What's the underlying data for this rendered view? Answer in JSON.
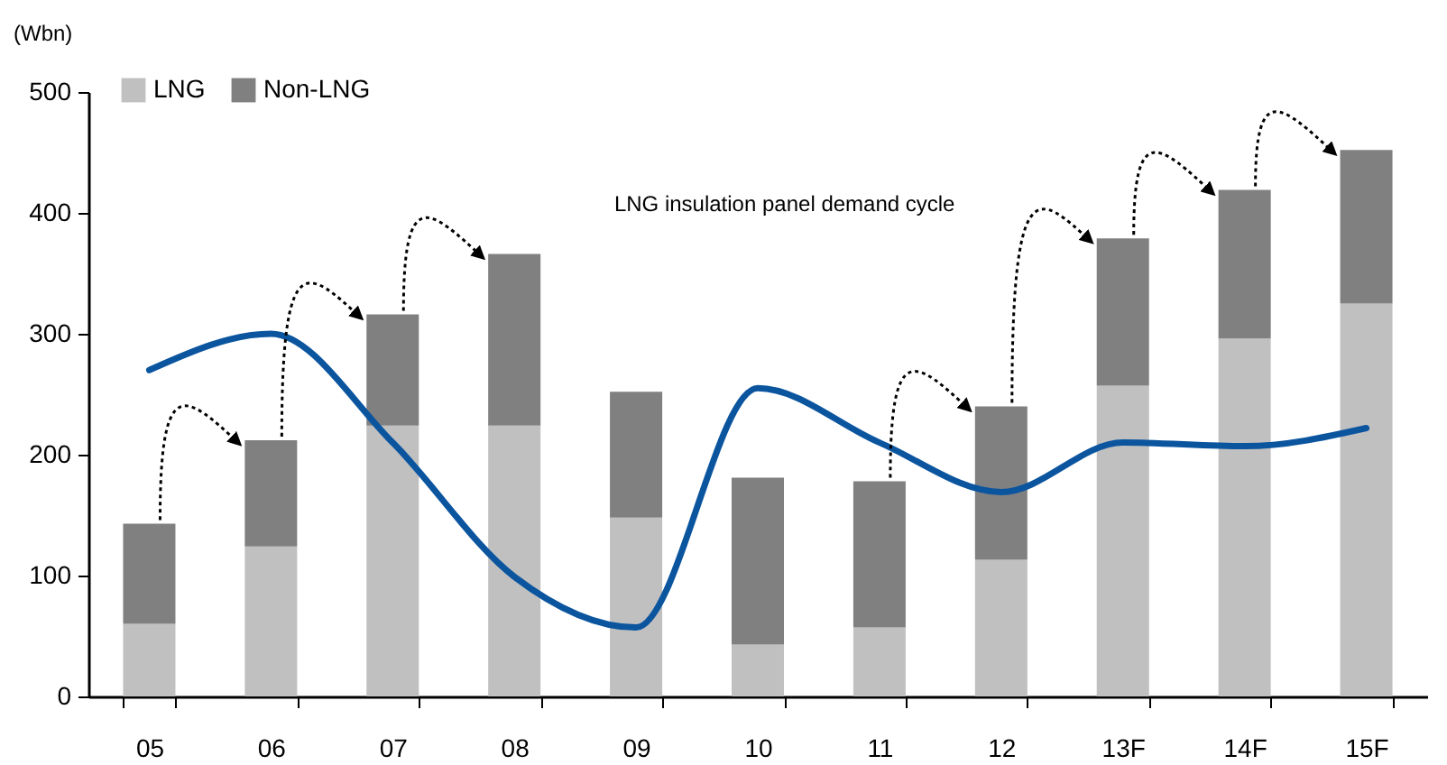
{
  "chart_data": {
    "type": "bar",
    "stacked": true,
    "ylabel": "(Wbn)",
    "legend": "top left",
    "categories": [
      "05",
      "06",
      "07",
      "08",
      "09",
      "10",
      "11",
      "12",
      "13F",
      "14F",
      "15F"
    ],
    "series": [
      {
        "name": "LNG",
        "color": "#c0c0c0",
        "values": [
          60,
          124,
          224,
          224,
          148,
          43,
          57,
          113,
          257,
          296,
          325
        ]
      },
      {
        "name": "Non-LNG",
        "color": "#808080",
        "values": [
          83,
          88,
          92,
          142,
          104,
          138,
          121,
          127,
          122,
          123,
          127
        ]
      },
      {
        "type": "line",
        "color": "#0b559f",
        "values": [
          270,
          300,
          210,
          99,
          57,
          255,
          210,
          169,
          210,
          207,
          222
        ]
      }
    ],
    "ylim": [
      0,
      500
    ],
    "yticks": [
      0,
      100,
      200,
      300,
      400,
      500
    ],
    "annotations": [
      "LNG insulation panel demand cycle"
    ]
  }
}
